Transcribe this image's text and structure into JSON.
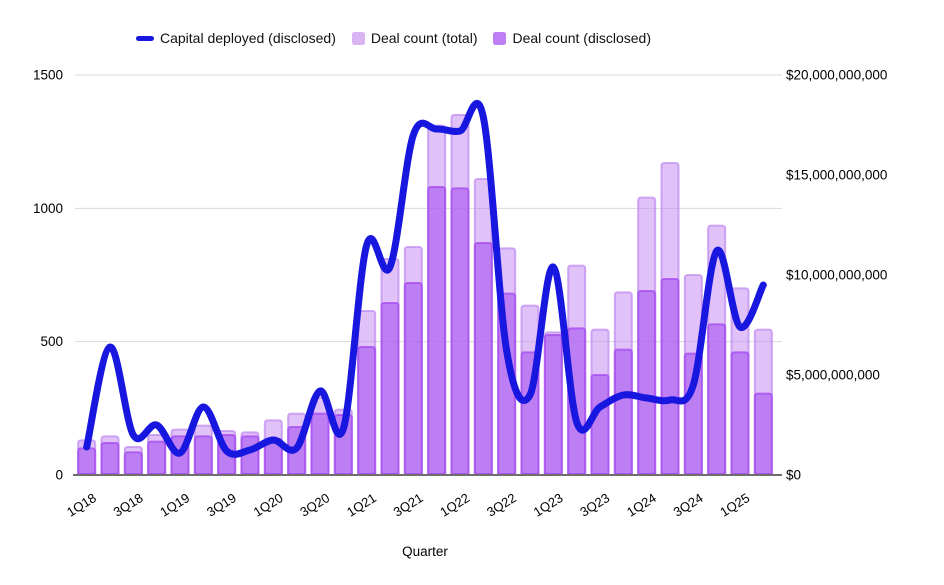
{
  "legend": [
    {
      "label": "Capital deployed (disclosed)",
      "swatch": "line-swatch",
      "color": "#1717e0"
    },
    {
      "label": "Deal count (total)",
      "swatch": "square-swatch",
      "color": "#d9b4f4"
    },
    {
      "label": "Deal count (disclosed)",
      "swatch": "square-swatch",
      "color": "#bd7ff3"
    }
  ],
  "x_axis_title": "Quarter",
  "colors": {
    "line": "#1717e0",
    "bar_total_fill": "#c183f2",
    "bar_total_stroke": "#c08cf0",
    "bar_disclosed_fill": "#a855f0",
    "bar_disclosed_stroke": "#a64ef0",
    "gridline": "#dadada",
    "axis_line": "#6e6e6e",
    "text": "#000000"
  },
  "chart_data": {
    "type": "combo",
    "categories": [
      "1Q18",
      "2Q18",
      "3Q18",
      "4Q18",
      "1Q19",
      "2Q19",
      "3Q19",
      "4Q19",
      "1Q20",
      "2Q20",
      "3Q20",
      "4Q20",
      "1Q21",
      "2Q21",
      "3Q21",
      "4Q21",
      "1Q22",
      "2Q22",
      "3Q22",
      "4Q22",
      "1Q23",
      "2Q23",
      "3Q23",
      "4Q23",
      "1Q24",
      "2Q24",
      "3Q24",
      "4Q24",
      "1Q25",
      "2Q25"
    ],
    "x_tick_labels": [
      "1Q18",
      "3Q18",
      "1Q19",
      "3Q19",
      "1Q20",
      "3Q20",
      "1Q21",
      "3Q21",
      "1Q22",
      "3Q22",
      "1Q23",
      "3Q23",
      "1Q24",
      "3Q24",
      "1Q25"
    ],
    "xlabel": "Quarter",
    "grid": "horizontal",
    "legend_position": "top",
    "series": [
      {
        "name": "Deal count (total)",
        "type": "bar",
        "axis": "left",
        "values": [
          130,
          145,
          105,
          150,
          170,
          185,
          165,
          160,
          205,
          230,
          290,
          245,
          615,
          810,
          855,
          1310,
          1350,
          1110,
          850,
          635,
          535,
          785,
          545,
          685,
          1040,
          1170,
          750,
          935,
          700,
          545
        ]
      },
      {
        "name": "Deal count (disclosed)",
        "type": "bar",
        "axis": "left",
        "values": [
          100,
          120,
          85,
          125,
          145,
          145,
          150,
          145,
          135,
          180,
          230,
          225,
          480,
          645,
          720,
          1080,
          1075,
          870,
          680,
          460,
          525,
          550,
          375,
          470,
          690,
          735,
          455,
          565,
          460,
          305
        ]
      },
      {
        "name": "Capital deployed (disclosed)",
        "type": "line",
        "axis": "right",
        "values_usd_billions": [
          1.4,
          6.4,
          2.0,
          2.5,
          1.1,
          3.4,
          1.2,
          1.25,
          1.75,
          1.35,
          4.2,
          2.3,
          11.5,
          10.4,
          17.0,
          17.3,
          17.2,
          17.9,
          6.2,
          4.0,
          10.4,
          2.65,
          3.4,
          4.0,
          3.85,
          3.75,
          4.5,
          11.2,
          7.4,
          9.5
        ]
      }
    ],
    "left_axis": {
      "range": [
        0,
        1500
      ],
      "tick_values": [
        0,
        500,
        1000,
        1500
      ],
      "tick_labels": [
        "0",
        "500",
        "1000",
        "1500"
      ]
    },
    "right_axis": {
      "range": [
        0,
        20000000000
      ],
      "tick_labels": [
        "$0",
        "$5,000,000,000",
        "$10,000,000,000",
        "$15,000,000,000",
        "$20,000,000,000"
      ]
    }
  }
}
